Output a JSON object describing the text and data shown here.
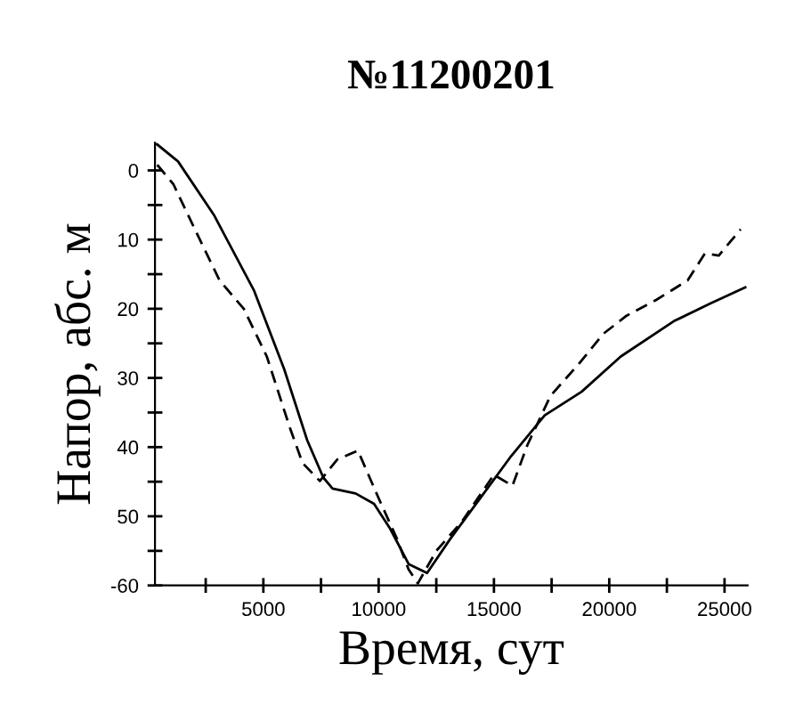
{
  "chart_data": {
    "type": "line",
    "title": "№11200201",
    "xlabel": "Время, сут",
    "ylabel": "Напор, абс. м",
    "xlim": [
      300,
      26000
    ],
    "ylim": [
      -60,
      4
    ],
    "xticks": [
      {
        "value": 2500,
        "label": null
      },
      5000,
      {
        "value": 7500,
        "label": null
      },
      10000,
      {
        "value": 12500,
        "label": null
      },
      15000,
      {
        "value": 17500,
        "label": null
      },
      20000,
      {
        "value": 22500,
        "label": null
      },
      25000
    ],
    "yticks": [
      {
        "value": -60,
        "label": "-60"
      },
      {
        "value": -55,
        "label": null
      },
      {
        "value": -50,
        "label": "50"
      },
      {
        "value": -45,
        "label": null
      },
      {
        "value": -40,
        "label": "40"
      },
      {
        "value": -35,
        "label": null
      },
      {
        "value": -30,
        "label": "30"
      },
      {
        "value": -25,
        "label": null
      },
      {
        "value": -20,
        "label": "20"
      },
      {
        "value": -15,
        "label": null
      },
      {
        "value": -10,
        "label": "10"
      },
      {
        "value": -5,
        "label": null
      },
      0
    ],
    "grid": false,
    "marker": "none",
    "series": [
      {
        "color": "#000000",
        "line_style": "solid",
        "x": [
          380,
          1300,
          2850,
          4600,
          5900,
          6900,
          7600,
          8000,
          9000,
          9800,
          10500,
          11300,
          12100,
          13100,
          14400,
          15700,
          17200,
          18800,
          20500,
          22800,
          24400,
          25900
        ],
        "values": [
          3.8,
          1.3,
          -6.4,
          -17.4,
          -28.7,
          -39,
          -44.4,
          -46,
          -46.7,
          -48.2,
          -51.8,
          -56.9,
          -58.2,
          -53.3,
          -47.4,
          -41.5,
          -35.4,
          -32,
          -26.9,
          -21.8,
          -19.2,
          -16.9
        ]
      },
      {
        "color": "#000000",
        "line_style": "dashed",
        "x": [
          400,
          1100,
          2100,
          3100,
          4150,
          5150,
          6150,
          6700,
          7450,
          8200,
          9100,
          10000,
          10800,
          11300,
          11700,
          12500,
          13600,
          15000,
          15800,
          16450,
          17450,
          18750,
          19750,
          20750,
          22050,
          23400,
          24150,
          24750,
          25700
        ],
        "values": [
          0.8,
          -2,
          -9,
          -15.9,
          -20,
          -26.9,
          -37.2,
          -42.3,
          -44.9,
          -41.8,
          -40.5,
          -47.4,
          -53.3,
          -57.7,
          -59.7,
          -55,
          -50.8,
          -44,
          -45.6,
          -39.7,
          -32.6,
          -27.7,
          -23.6,
          -21,
          -18.7,
          -15.9,
          -12,
          -12.3,
          -8.5
        ]
      }
    ]
  }
}
